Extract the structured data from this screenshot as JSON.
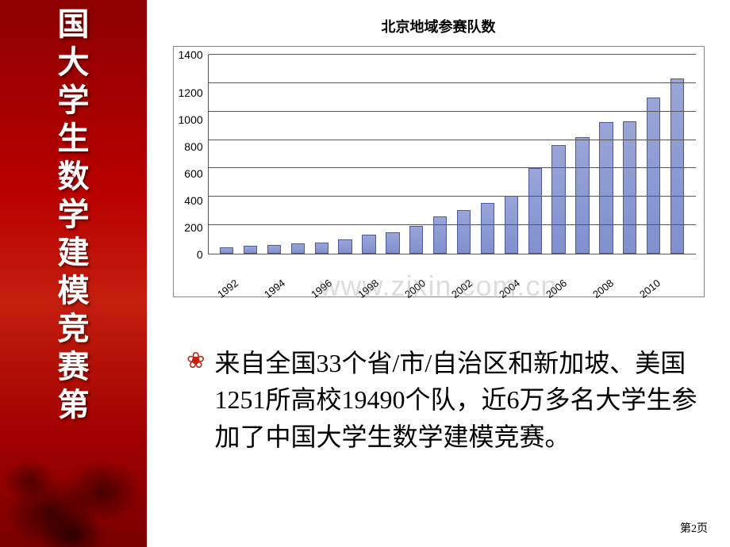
{
  "sidebar": {
    "chars": [
      "国",
      "大",
      "学",
      "生",
      "数",
      "学",
      "建",
      "模",
      "竞",
      "赛",
      "第"
    ],
    "bg_gradient": [
      "#8b0000",
      "#a00000",
      "#b80000",
      "#c41e0e",
      "#a00000",
      "#7a0000"
    ],
    "text_color": "#ffffff",
    "char_fontsize": 40
  },
  "chart": {
    "type": "bar",
    "title": "北京地域参赛队数",
    "title_fontsize": 18,
    "categories": [
      "1992",
      "1993",
      "1994",
      "1995",
      "1996",
      "1997",
      "1998",
      "1999",
      "2000",
      "2001",
      "2002",
      "2003",
      "2004",
      "2005",
      "2006",
      "2007",
      "2008",
      "2009",
      "2010",
      "2011"
    ],
    "x_labels_shown": [
      "1992",
      "1994",
      "1996",
      "1998",
      "2000",
      "2002",
      "2004",
      "2006",
      "2008",
      "2010"
    ],
    "values": [
      45,
      55,
      60,
      70,
      80,
      100,
      135,
      150,
      195,
      260,
      305,
      355,
      410,
      605,
      765,
      820,
      925,
      930,
      1100,
      1230
    ],
    "bar_color": "#8090ce",
    "bar_border": "#4a5a9a",
    "bar_width": 0.58,
    "ylim": [
      0,
      1400
    ],
    "ytick_step": 200,
    "y_ticks": [
      "1400",
      "1200",
      "1000",
      "800",
      "600",
      "400",
      "200",
      "0"
    ],
    "label_fontsize": 14,
    "xlabel_fontsize": 13,
    "xlabel_rotation": -38,
    "grid_color": "#555555",
    "border_color": "#888888",
    "background_color": "#ffffff"
  },
  "watermark": {
    "text": "www.zixin.com.cn",
    "color": "rgba(150,150,150,0.32)",
    "fontsize": 36
  },
  "body": {
    "bullet": "❀",
    "bullet_color": "#c41e0e",
    "text": "来自全国33个省/市/自治区和新加坡、美国1251所高校19490个队，近6万多名大学生参加了中国大学生数学建模竞赛。",
    "fontsize": 32
  },
  "page_num": "第2页"
}
